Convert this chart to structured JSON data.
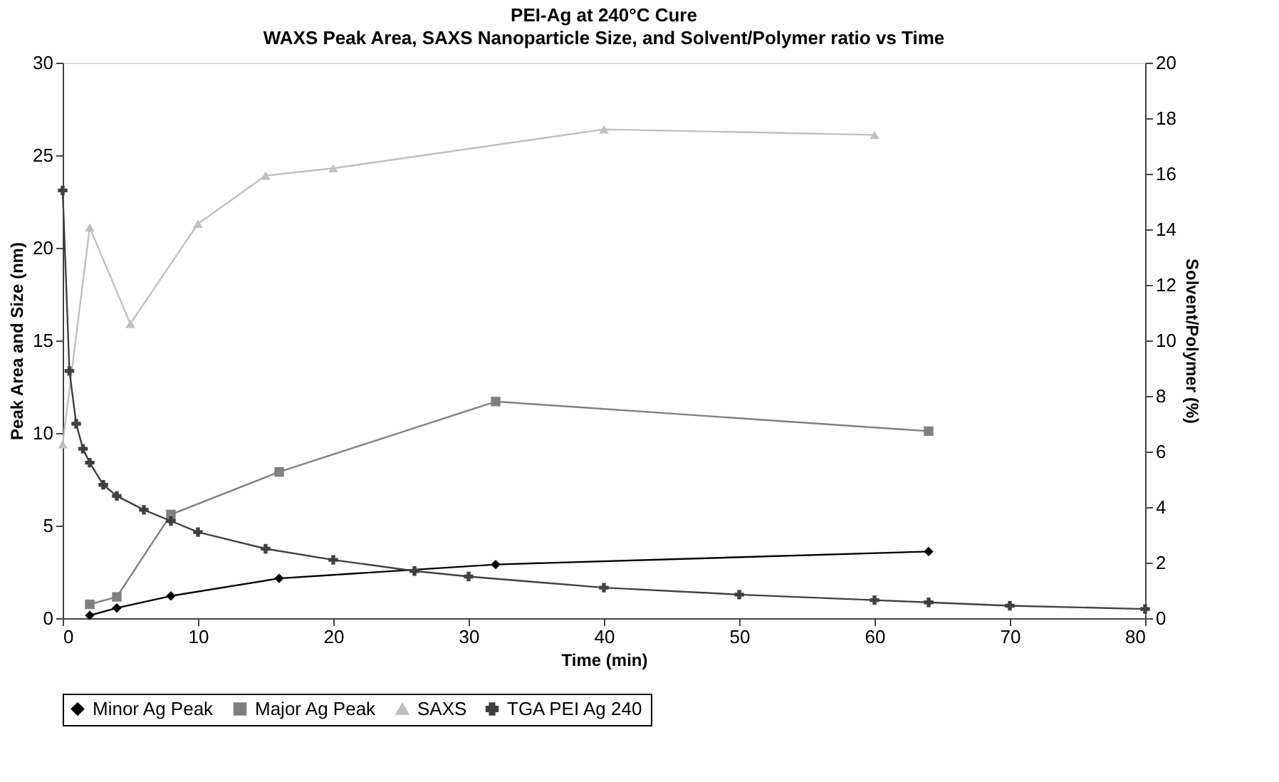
{
  "chart_data": {
    "type": "line",
    "title": "PEI-Ag at 240°C Cure",
    "subtitle": "WAXS Peak Area, SAXS Nanoparticle Size, and Solvent/Polymer ratio vs Time",
    "xlabel": "Time (min)",
    "ylabel": "Peak Area and Size (nm)",
    "y2label": "Solvent/Polymer (%)",
    "xlim": [
      0,
      80
    ],
    "xticks": [
      0,
      10,
      20,
      30,
      40,
      50,
      60,
      70,
      80
    ],
    "ylim": [
      0,
      30
    ],
    "yticks": [
      0,
      5,
      10,
      15,
      20,
      25,
      30
    ],
    "y2lim": [
      0,
      20
    ],
    "y2ticks": [
      0,
      2,
      4,
      6,
      8,
      10,
      12,
      14,
      16,
      18,
      20
    ],
    "grid": false,
    "legend": "bottom",
    "line_style": "solid",
    "series": [
      {
        "name": "Minor Ag Peak",
        "color": "#000000",
        "marker": "diamond",
        "x": [
          2,
          4,
          8,
          16,
          32,
          64
        ],
        "values": [
          0.15,
          0.55,
          1.2,
          2.15,
          2.9,
          3.6
        ]
      },
      {
        "name": "Major Ag Peak",
        "color": "#808080",
        "marker": "square",
        "x": [
          2,
          4,
          8,
          16,
          32,
          64
        ],
        "values": [
          0.75,
          1.15,
          5.6,
          7.9,
          11.7,
          10.1
        ]
      },
      {
        "name": "SAXS",
        "color": "#c0c0c0",
        "marker": "triangle",
        "x": [
          0,
          2,
          5,
          10,
          15,
          20,
          40,
          60
        ],
        "values": [
          9.4,
          21.1,
          15.9,
          21.3,
          23.9,
          24.3,
          26.4,
          26.1
        ]
      },
      {
        "name": "TGA PEI Ag 240",
        "color": "#404040",
        "marker": "cross",
        "axis": "y2",
        "x": [
          0,
          0.5,
          1,
          1.5,
          2,
          3,
          4,
          6,
          8,
          10,
          15,
          20,
          26,
          30,
          40,
          50,
          60,
          64,
          70,
          80
        ],
        "values": [
          15.4,
          8.9,
          7.0,
          6.1,
          5.6,
          4.8,
          4.4,
          3.9,
          3.5,
          3.1,
          2.5,
          2.1,
          1.7,
          1.5,
          1.1,
          0.85,
          0.65,
          0.57,
          0.45,
          0.33
        ]
      }
    ]
  }
}
